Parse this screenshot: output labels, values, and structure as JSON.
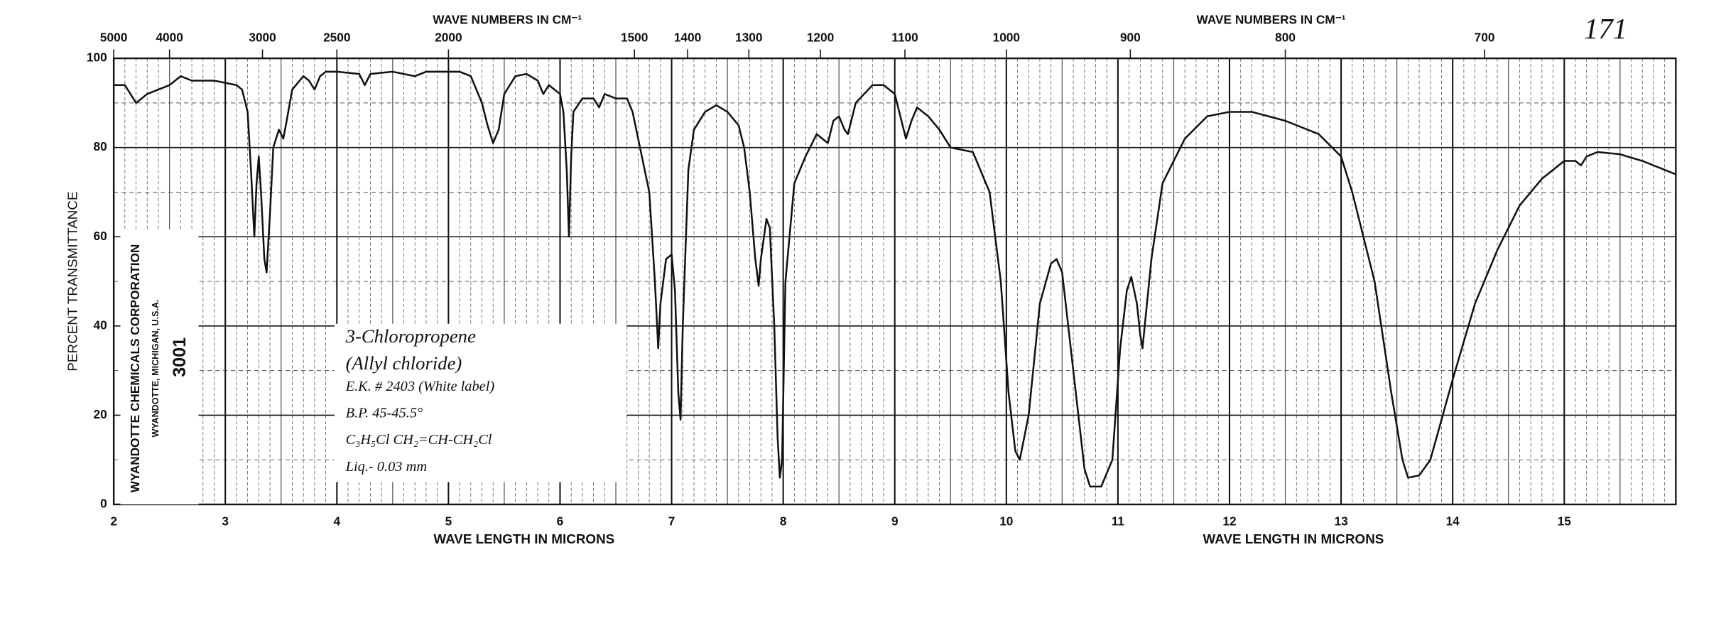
{
  "chart_data": {
    "type": "line",
    "x2_label": "WAVE NUMBERS IN CM⁻¹",
    "xlabel": "WAVE LENGTH IN MICRONS",
    "ylabel": "PERCENT TRANSMITTANCE",
    "page_number": "171",
    "stamp": [
      "WYANDOTTE CHEMICALS CORPORATION",
      "WYANDOTTE, MICHIGAN, U.S.A."
    ],
    "sample_number": "3001",
    "notes": [
      "3-Chloropropene",
      "(Allyl chloride)",
      "E.K. # 2403 (White label)",
      "B.P. 45-45.5°",
      "C₃H₅Cl   CH₂=CH-CH₂Cl",
      "Liq.- 0.03 mm"
    ],
    "color": "#111111",
    "grid": true,
    "xlim": [
      2,
      16
    ],
    "xticks": [
      2,
      3,
      4,
      5,
      6,
      7,
      8,
      9,
      10,
      11,
      12,
      13,
      14,
      15
    ],
    "x2ticks": [
      5000,
      4000,
      3000,
      2500,
      2000,
      1500,
      1400,
      1300,
      1200,
      1100,
      1000,
      900,
      800,
      700
    ],
    "ylim": [
      0,
      100
    ],
    "yticks": [
      0,
      20,
      40,
      60,
      80,
      100
    ],
    "x": [
      2.0,
      2.1,
      2.15,
      2.2,
      2.3,
      2.4,
      2.5,
      2.6,
      2.7,
      2.9,
      3.0,
      3.1,
      3.15,
      3.2,
      3.23,
      3.26,
      3.28,
      3.3,
      3.32,
      3.35,
      3.37,
      3.4,
      3.43,
      3.48,
      3.52,
      3.55,
      3.6,
      3.7,
      3.75,
      3.8,
      3.85,
      3.9,
      4.0,
      4.2,
      4.25,
      4.3,
      4.5,
      4.7,
      4.8,
      5.0,
      5.1,
      5.2,
      5.3,
      5.35,
      5.4,
      5.45,
      5.5,
      5.6,
      5.7,
      5.8,
      5.85,
      5.9,
      6.0,
      6.03,
      6.06,
      6.08,
      6.1,
      6.12,
      6.2,
      6.3,
      6.35,
      6.4,
      6.5,
      6.6,
      6.65,
      6.7,
      6.8,
      6.85,
      6.88,
      6.9,
      6.95,
      7.0,
      7.03,
      7.06,
      7.08,
      7.1,
      7.15,
      7.2,
      7.3,
      7.4,
      7.5,
      7.6,
      7.65,
      7.7,
      7.75,
      7.78,
      7.8,
      7.85,
      7.88,
      7.92,
      7.95,
      7.97,
      7.99,
      8.02,
      8.1,
      8.2,
      8.3,
      8.4,
      8.45,
      8.5,
      8.55,
      8.58,
      8.65,
      8.8,
      8.9,
      9.0,
      9.05,
      9.1,
      9.15,
      9.2,
      9.3,
      9.4,
      9.5,
      9.7,
      9.85,
      9.95,
      10.02,
      10.08,
      10.12,
      10.2,
      10.3,
      10.4,
      10.45,
      10.5,
      10.6,
      10.7,
      10.75,
      10.85,
      10.95,
      11.02,
      11.08,
      11.12,
      11.17,
      11.2,
      11.22,
      11.3,
      11.4,
      11.6,
      11.8,
      12.0,
      12.2,
      12.5,
      12.8,
      13.0,
      13.1,
      13.3,
      13.45,
      13.55,
      13.6,
      13.7,
      13.8,
      14.0,
      14.2,
      14.4,
      14.6,
      14.8,
      15.0,
      15.1,
      15.15,
      15.2,
      15.3,
      15.5,
      15.7,
      15.9,
      16.0
    ],
    "values": [
      94,
      94,
      92,
      90,
      92,
      93,
      94,
      96,
      95,
      95,
      94.5,
      94,
      93,
      88,
      75,
      60,
      72,
      78,
      70,
      55,
      52,
      65,
      80,
      84,
      82,
      86,
      93,
      96,
      95,
      93,
      96,
      97,
      97,
      96.5,
      94,
      96.5,
      97,
      96,
      97,
      97,
      97,
      96,
      90,
      85,
      81,
      84,
      92,
      96,
      96.5,
      95,
      92,
      94,
      92,
      88,
      75,
      60,
      78,
      88,
      91,
      91,
      89,
      92,
      91,
      91,
      88,
      82,
      70,
      50,
      35,
      45,
      55,
      56,
      48,
      25,
      19,
      40,
      75,
      84,
      88,
      89.5,
      88,
      85,
      80,
      70,
      55,
      49,
      55,
      64,
      62,
      40,
      15,
      6,
      10,
      50,
      72,
      78,
      83,
      81,
      86,
      87,
      84,
      83,
      90,
      94,
      94,
      92,
      87,
      82,
      86,
      89,
      87,
      84,
      80,
      79,
      70,
      50,
      25,
      12,
      10,
      20,
      45,
      54,
      55,
      52,
      30,
      8,
      4,
      4,
      10,
      35,
      48,
      51,
      45,
      38,
      35,
      55,
      72,
      82,
      87,
      88,
      88,
      86,
      83,
      78,
      70,
      50,
      25,
      10,
      6,
      6.5,
      10,
      28,
      45,
      57,
      67,
      73,
      77,
      77,
      76,
      78,
      79,
      78.5,
      77,
      75,
      74
    ]
  }
}
